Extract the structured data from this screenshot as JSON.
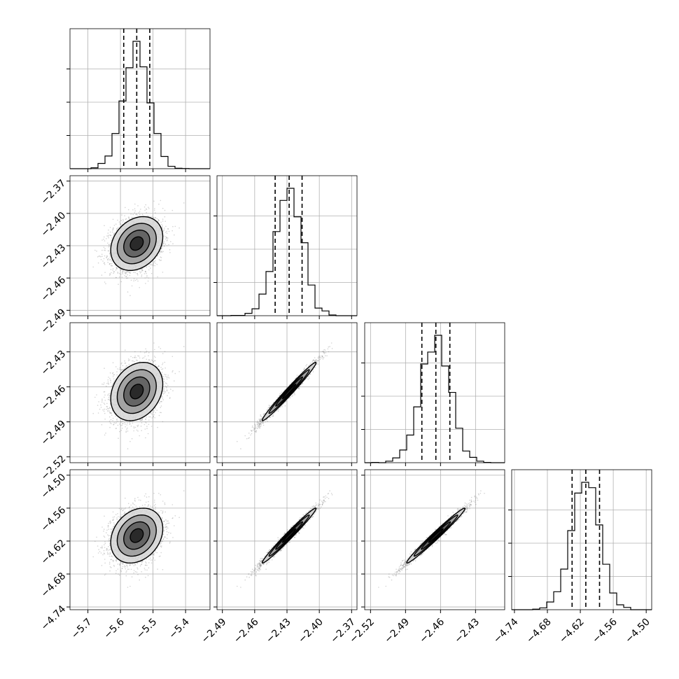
{
  "chart_data": {
    "type": "corner",
    "n_params": 4,
    "params": [
      {
        "index": 0,
        "mean": -5.55,
        "std": 0.04,
        "q16": -5.59,
        "q50": -5.55,
        "q84": -5.51,
        "range": [
          -5.755,
          -5.325
        ],
        "ticks": [
          -5.7,
          -5.6,
          -5.5,
          -5.4
        ],
        "tick_labels": [
          "−5.7",
          "−5.6",
          "−5.5",
          "−5.4"
        ]
      },
      {
        "index": 1,
        "mean": -2.428,
        "std": 0.0125,
        "q16": -2.441,
        "q50": -2.428,
        "q84": -2.416,
        "range": [
          -2.495,
          -2.365
        ],
        "ticks": [
          -2.49,
          -2.46,
          -2.43,
          -2.4,
          -2.37
        ],
        "tick_labels": [
          "−2.49",
          "−2.46",
          "−2.43",
          "−2.40",
          "−2.37"
        ]
      },
      {
        "index": 2,
        "mean": -2.464,
        "std": 0.0125,
        "q16": -2.476,
        "q50": -2.464,
        "q84": -2.452,
        "range": [
          -2.525,
          -2.405
        ],
        "ticks": [
          -2.52,
          -2.49,
          -2.46,
          -2.43
        ],
        "tick_labels": [
          "−2.52",
          "−2.49",
          "−2.46",
          "−2.43"
        ]
      },
      {
        "index": 3,
        "mean": -4.61,
        "std": 0.025,
        "q16": -4.635,
        "q50": -4.61,
        "q84": -4.585,
        "range": [
          -4.745,
          -4.49
        ],
        "ticks": [
          -4.74,
          -4.68,
          -4.62,
          -4.56,
          -4.5
        ],
        "tick_labels": [
          "−4.74",
          "−4.68",
          "−4.62",
          "−4.56",
          "−4.50"
        ]
      }
    ],
    "correlations": [
      [
        1.0,
        0.25,
        0.25,
        0.25
      ],
      [
        0.25,
        1.0,
        0.985,
        0.985
      ],
      [
        0.25,
        0.985,
        1.0,
        0.985
      ],
      [
        0.25,
        0.985,
        0.985,
        1.0
      ]
    ],
    "histogram_bins": 20,
    "quantile_lines": [
      0.16,
      0.5,
      0.84
    ],
    "grid": true,
    "colors": {
      "line": "#000000",
      "grid": "#b0b0b0",
      "points": "#808080"
    }
  }
}
